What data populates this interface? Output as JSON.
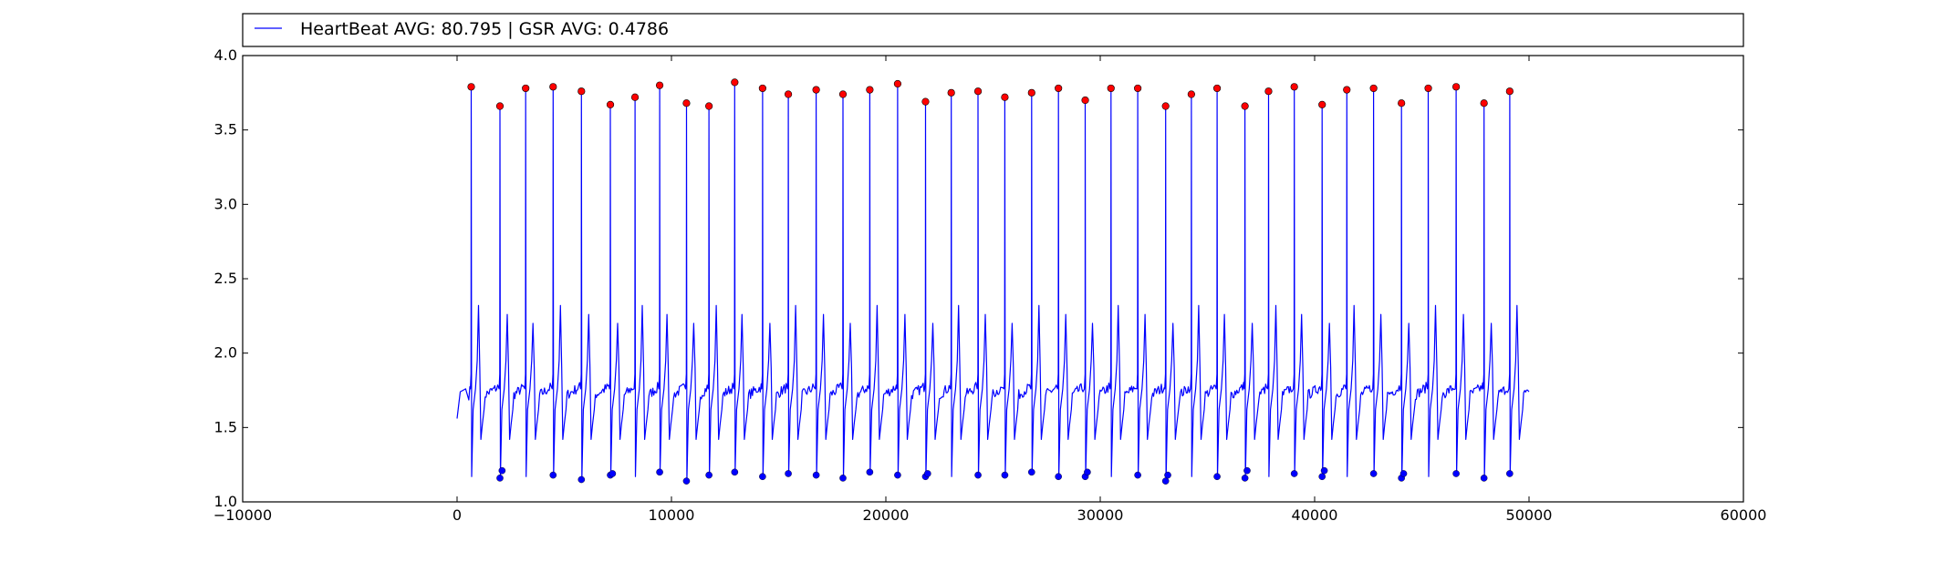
{
  "legend": {
    "label": "HeartBeat AVG: 80.795 | GSR AVG: 0.4786",
    "line_color": "#0000ff"
  },
  "chart_data": {
    "type": "line",
    "title": "",
    "xlabel": "",
    "ylabel": "",
    "xlim": [
      -10000,
      60000
    ],
    "ylim": [
      1.0,
      4.0
    ],
    "xticks": [
      -10000,
      0,
      10000,
      20000,
      30000,
      40000,
      50000,
      60000
    ],
    "xtick_labels": [
      "−10000",
      "0",
      "10000",
      "20000",
      "30000",
      "40000",
      "50000",
      "60000"
    ],
    "yticks": [
      1.0,
      1.5,
      2.0,
      2.5,
      3.0,
      3.5,
      4.0
    ],
    "ytick_labels": [
      "1.0",
      "1.5",
      "2.0",
      "2.5",
      "3.0",
      "3.5",
      "4.0"
    ],
    "grid": false,
    "legend_position": "top, above plot",
    "signal": {
      "color": "#0000ff",
      "x_start": 0,
      "x_end": 50000,
      "start_y": 1.56,
      "baseline": 1.7,
      "end_y": 1.74
    },
    "series": [
      {
        "name": "HeartBeat AVG: 80.795 | GSR AVG: 0.4786",
        "marker": "line",
        "color": "#0000ff"
      },
      {
        "marker": "circle",
        "color": "#ff0000",
        "points": [
          [
            660,
            3.79
          ],
          [
            2000,
            3.66
          ],
          [
            3200,
            3.78
          ],
          [
            4480,
            3.79
          ],
          [
            5800,
            3.76
          ],
          [
            7150,
            3.67
          ],
          [
            8300,
            3.72
          ],
          [
            9450,
            3.8
          ],
          [
            10700,
            3.68
          ],
          [
            11750,
            3.66
          ],
          [
            12950,
            3.82
          ],
          [
            14250,
            3.78
          ],
          [
            15450,
            3.74
          ],
          [
            16750,
            3.77
          ],
          [
            18000,
            3.74
          ],
          [
            19250,
            3.77
          ],
          [
            20550,
            3.81
          ],
          [
            21850,
            3.69
          ],
          [
            23050,
            3.75
          ],
          [
            24300,
            3.76
          ],
          [
            25550,
            3.72
          ],
          [
            26800,
            3.75
          ],
          [
            28050,
            3.78
          ],
          [
            29300,
            3.7
          ],
          [
            30500,
            3.78
          ],
          [
            31750,
            3.78
          ],
          [
            33050,
            3.66
          ],
          [
            34250,
            3.74
          ],
          [
            35450,
            3.78
          ],
          [
            36750,
            3.66
          ],
          [
            37850,
            3.76
          ],
          [
            39050,
            3.79
          ],
          [
            40350,
            3.67
          ],
          [
            41500,
            3.77
          ],
          [
            42750,
            3.78
          ],
          [
            44050,
            3.68
          ],
          [
            45300,
            3.78
          ],
          [
            46600,
            3.79
          ],
          [
            47900,
            3.68
          ],
          [
            49100,
            3.76
          ]
        ]
      },
      {
        "marker": "circle",
        "color": "#0000ff",
        "points": [
          [
            2000,
            1.16
          ],
          [
            2100,
            1.21
          ],
          [
            4480,
            1.18
          ],
          [
            5800,
            1.15
          ],
          [
            7150,
            1.18
          ],
          [
            7250,
            1.19
          ],
          [
            9450,
            1.2
          ],
          [
            10700,
            1.14
          ],
          [
            11750,
            1.18
          ],
          [
            12950,
            1.2
          ],
          [
            14250,
            1.17
          ],
          [
            15450,
            1.19
          ],
          [
            16750,
            1.18
          ],
          [
            18000,
            1.16
          ],
          [
            19250,
            1.2
          ],
          [
            20550,
            1.18
          ],
          [
            21850,
            1.17
          ],
          [
            21950,
            1.19
          ],
          [
            24300,
            1.18
          ],
          [
            25550,
            1.18
          ],
          [
            26800,
            1.2
          ],
          [
            28050,
            1.17
          ],
          [
            29300,
            1.17
          ],
          [
            29400,
            1.2
          ],
          [
            31750,
            1.18
          ],
          [
            33050,
            1.14
          ],
          [
            33150,
            1.18
          ],
          [
            35450,
            1.17
          ],
          [
            36750,
            1.16
          ],
          [
            36850,
            1.21
          ],
          [
            39050,
            1.19
          ],
          [
            40350,
            1.17
          ],
          [
            40450,
            1.21
          ],
          [
            42750,
            1.19
          ],
          [
            44050,
            1.16
          ],
          [
            44150,
            1.19
          ],
          [
            46600,
            1.19
          ],
          [
            47900,
            1.16
          ],
          [
            49100,
            1.19
          ]
        ]
      }
    ]
  }
}
